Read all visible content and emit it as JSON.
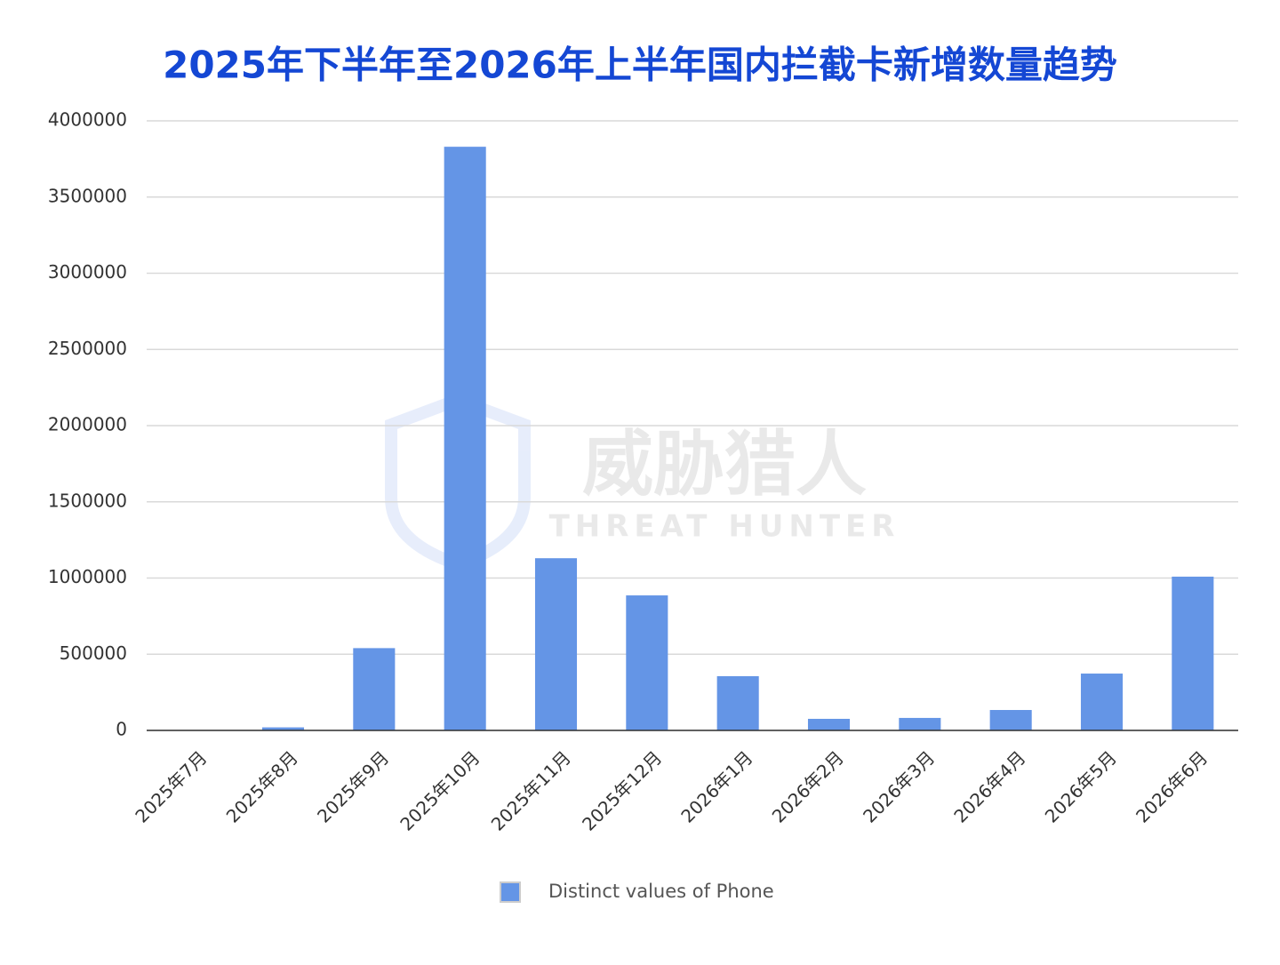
{
  "chart_data": {
    "type": "bar",
    "title": "2025年下半年至2026年上半年国内拦截卡新增数量趋势",
    "watermark": [
      "威胁猎人",
      "THREAT HUNTER"
    ],
    "categories": [
      "2025年7月",
      "2025年8月",
      "2025年9月",
      "2025年10月",
      "2025年11月",
      "2025年12月",
      "2026年1月",
      "2026年2月",
      "2026年3月",
      "2026年4月",
      "2026年5月",
      "2026年6月"
    ],
    "series": [
      {
        "name": "Distinct values of Phone",
        "color": "#6495e6",
        "values": [
          0,
          20000,
          540000,
          3830000,
          1130000,
          886000,
          356000,
          76000,
          82000,
          134000,
          373000,
          1009000
        ]
      }
    ],
    "ylim": [
      0,
      4000000
    ],
    "yticks": [
      0,
      500000,
      1000000,
      1500000,
      2000000,
      2500000,
      3000000,
      3500000,
      4000000
    ],
    "grid": true,
    "legend": "bottom"
  }
}
